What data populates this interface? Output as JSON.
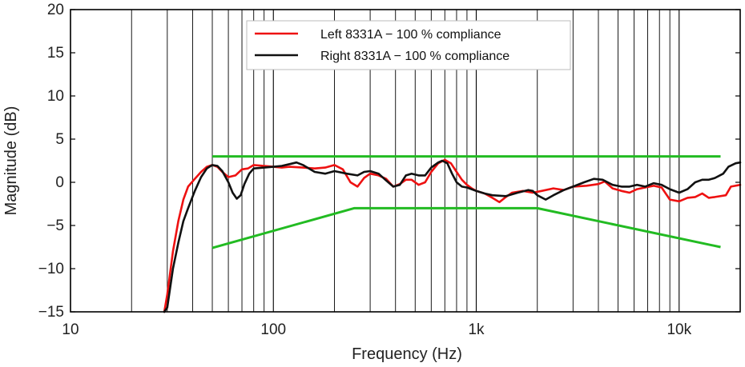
{
  "chart_data": {
    "type": "line",
    "title": "",
    "xlabel": "Frequency (Hz)",
    "ylabel": "Magnitude (dB)",
    "xscale": "log",
    "xlim": [
      10,
      20000
    ],
    "ylim": [
      -15,
      20
    ],
    "grid": "vertical-log",
    "legend_position": "top-center",
    "x_ticks": [
      {
        "value": 10,
        "label": "10"
      },
      {
        "value": 100,
        "label": "100"
      },
      {
        "value": 1000,
        "label": "1k"
      },
      {
        "value": 10000,
        "label": "10k"
      }
    ],
    "y_ticks": [
      {
        "value": 20,
        "label": "20"
      },
      {
        "value": 15,
        "label": "15"
      },
      {
        "value": 10,
        "label": "10"
      },
      {
        "value": 5,
        "label": "5"
      },
      {
        "value": 0,
        "label": "0"
      },
      {
        "value": -5,
        "label": "−5"
      },
      {
        "value": -10,
        "label": "−10"
      },
      {
        "value": -15,
        "label": "−15"
      }
    ],
    "series": [
      {
        "name": "Left 8331A − 100 % compliance",
        "color": "#ee1111",
        "points": [
          [
            29,
            -15
          ],
          [
            30,
            -13
          ],
          [
            32,
            -8
          ],
          [
            34,
            -4.5
          ],
          [
            36,
            -2
          ],
          [
            38,
            -0.5
          ],
          [
            41,
            0.4
          ],
          [
            44,
            1.2
          ],
          [
            47,
            1.8
          ],
          [
            50,
            2.0
          ],
          [
            53,
            1.8
          ],
          [
            56,
            1.2
          ],
          [
            60,
            0.6
          ],
          [
            65,
            0.8
          ],
          [
            70,
            1.5
          ],
          [
            75,
            1.6
          ],
          [
            80,
            2.0
          ],
          [
            90,
            1.9
          ],
          [
            100,
            1.8
          ],
          [
            110,
            1.7
          ],
          [
            120,
            1.8
          ],
          [
            140,
            1.7
          ],
          [
            160,
            1.6
          ],
          [
            180,
            1.7
          ],
          [
            200,
            2.0
          ],
          [
            220,
            1.5
          ],
          [
            240,
            0
          ],
          [
            260,
            -0.5
          ],
          [
            280,
            0.5
          ],
          [
            300,
            1.0
          ],
          [
            330,
            0.8
          ],
          [
            360,
            0.4
          ],
          [
            390,
            -0.5
          ],
          [
            420,
            -0.2
          ],
          [
            450,
            0.3
          ],
          [
            480,
            0.3
          ],
          [
            520,
            -0.3
          ],
          [
            560,
            0
          ],
          [
            600,
            1.2
          ],
          [
            650,
            2.2
          ],
          [
            700,
            2.6
          ],
          [
            750,
            2.2
          ],
          [
            800,
            1.2
          ],
          [
            850,
            0.3
          ],
          [
            900,
            -0.3
          ],
          [
            950,
            -0.7
          ],
          [
            1000,
            -1.0
          ],
          [
            1100,
            -1.3
          ],
          [
            1200,
            -1.8
          ],
          [
            1300,
            -2.3
          ],
          [
            1400,
            -1.7
          ],
          [
            1500,
            -1.2
          ],
          [
            1700,
            -1.0
          ],
          [
            1900,
            -1.2
          ],
          [
            2100,
            -1.0
          ],
          [
            2400,
            -0.7
          ],
          [
            2700,
            -0.9
          ],
          [
            3000,
            -0.5
          ],
          [
            3500,
            -0.4
          ],
          [
            4000,
            -0.2
          ],
          [
            4300,
            0.1
          ],
          [
            4700,
            -0.7
          ],
          [
            5200,
            -1.0
          ],
          [
            5700,
            -1.2
          ],
          [
            6200,
            -0.8
          ],
          [
            6800,
            -0.6
          ],
          [
            7500,
            -0.4
          ],
          [
            8200,
            -0.6
          ],
          [
            9000,
            -2.0
          ],
          [
            10000,
            -2.2
          ],
          [
            11000,
            -1.8
          ],
          [
            12000,
            -1.7
          ],
          [
            13000,
            -1.3
          ],
          [
            14000,
            -1.8
          ],
          [
            15000,
            -1.7
          ],
          [
            17000,
            -1.5
          ],
          [
            18000,
            -0.5
          ],
          [
            20000,
            -0.3
          ]
        ]
      },
      {
        "name": "Right 8331A − 100 % compliance",
        "color": "#111111",
        "points": [
          [
            29,
            -15
          ],
          [
            30,
            -14.5
          ],
          [
            32,
            -10
          ],
          [
            34,
            -7
          ],
          [
            36,
            -4.5
          ],
          [
            38,
            -3
          ],
          [
            41,
            -1
          ],
          [
            44,
            0.6
          ],
          [
            47,
            1.6
          ],
          [
            50,
            2.0
          ],
          [
            53,
            1.9
          ],
          [
            56,
            1.3
          ],
          [
            60,
            0
          ],
          [
            63,
            -1.2
          ],
          [
            66,
            -1.9
          ],
          [
            69,
            -1.5
          ],
          [
            72,
            -0.2
          ],
          [
            76,
            1.0
          ],
          [
            80,
            1.6
          ],
          [
            90,
            1.7
          ],
          [
            100,
            1.8
          ],
          [
            110,
            1.9
          ],
          [
            120,
            2.1
          ],
          [
            130,
            2.3
          ],
          [
            140,
            2.0
          ],
          [
            160,
            1.2
          ],
          [
            180,
            1.0
          ],
          [
            200,
            1.3
          ],
          [
            230,
            1.0
          ],
          [
            260,
            0.8
          ],
          [
            280,
            1.2
          ],
          [
            300,
            1.3
          ],
          [
            330,
            1.0
          ],
          [
            360,
            0.2
          ],
          [
            390,
            -0.5
          ],
          [
            420,
            -0.3
          ],
          [
            450,
            0.8
          ],
          [
            480,
            1.0
          ],
          [
            520,
            0.8
          ],
          [
            560,
            0.8
          ],
          [
            600,
            1.7
          ],
          [
            650,
            2.3
          ],
          [
            680,
            2.5
          ],
          [
            720,
            2.2
          ],
          [
            760,
            1.0
          ],
          [
            800,
            0
          ],
          [
            850,
            -0.5
          ],
          [
            900,
            -0.6
          ],
          [
            1000,
            -1.0
          ],
          [
            1100,
            -1.3
          ],
          [
            1200,
            -1.5
          ],
          [
            1400,
            -1.6
          ],
          [
            1600,
            -1.2
          ],
          [
            1800,
            -0.9
          ],
          [
            1900,
            -1.0
          ],
          [
            2000,
            -1.5
          ],
          [
            2200,
            -2.0
          ],
          [
            2400,
            -1.5
          ],
          [
            2700,
            -0.9
          ],
          [
            3000,
            -0.5
          ],
          [
            3400,
            0
          ],
          [
            3800,
            0.4
          ],
          [
            4200,
            0.3
          ],
          [
            4700,
            -0.3
          ],
          [
            5200,
            -0.5
          ],
          [
            5700,
            -0.5
          ],
          [
            6200,
            -0.3
          ],
          [
            6800,
            -0.5
          ],
          [
            7500,
            -0.1
          ],
          [
            8200,
            -0.3
          ],
          [
            9000,
            -0.8
          ],
          [
            10000,
            -1.2
          ],
          [
            11000,
            -0.8
          ],
          [
            12000,
            0
          ],
          [
            13000,
            0.3
          ],
          [
            14000,
            0.3
          ],
          [
            15000,
            0.5
          ],
          [
            16500,
            1.0
          ],
          [
            17500,
            1.8
          ],
          [
            19000,
            2.2
          ],
          [
            20000,
            2.3
          ]
        ]
      }
    ],
    "tolerance_lines": [
      {
        "name": "upper-limit",
        "color": "#22bb22",
        "points": [
          [
            50,
            3
          ],
          [
            16000,
            3
          ]
        ]
      },
      {
        "name": "lower-limit",
        "color": "#22bb22",
        "points": [
          [
            50,
            -7.6
          ],
          [
            250,
            -3
          ],
          [
            2000,
            -3
          ],
          [
            16000,
            -7.5
          ]
        ]
      }
    ]
  }
}
